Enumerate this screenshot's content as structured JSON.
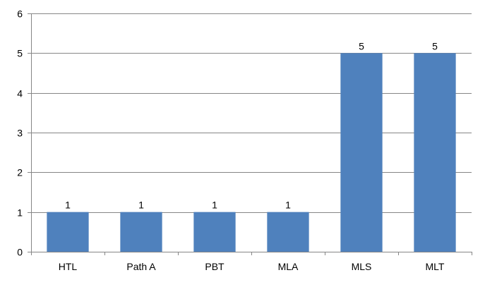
{
  "chart_data": {
    "type": "bar",
    "categories": [
      "HTL",
      "Path A",
      "PBT",
      "MLA",
      "MLS",
      "MLT"
    ],
    "values": [
      1,
      1,
      1,
      1,
      5,
      5
    ],
    "data_labels": [
      "1",
      "1",
      "1",
      "1",
      "5",
      "5"
    ],
    "y_ticks": [
      "0",
      "1",
      "2",
      "3",
      "4",
      "5",
      "6"
    ],
    "ylim": [
      0,
      6
    ],
    "grid": true,
    "legend": "none",
    "colors": {
      "bar": "#4F81BD",
      "gridline": "#868686",
      "axis": "#868686",
      "text": "#000000"
    }
  }
}
